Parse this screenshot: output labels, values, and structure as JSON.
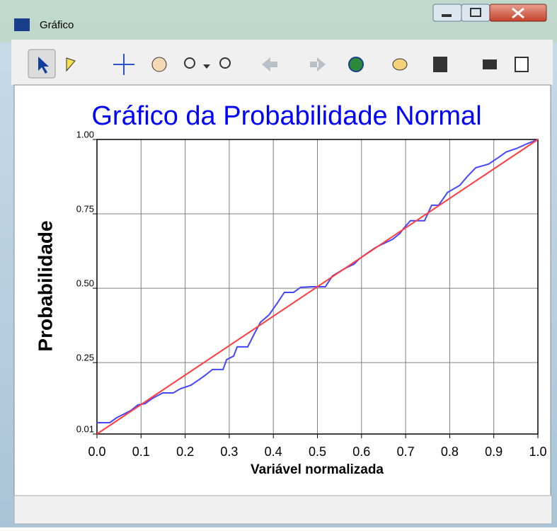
{
  "window": {
    "title": "Gráfico"
  },
  "chart_data": {
    "type": "line",
    "title": "Gráfico da Probabilidade Normal",
    "xlabel": "Variável normalizada",
    "ylabel": "Probabilidade",
    "xlim": [
      0,
      1
    ],
    "ylim": [
      0.01,
      1
    ],
    "xticks": [
      {
        "value": 0,
        "label": "0.0"
      },
      0.1,
      0.2,
      0.3,
      0.4,
      0.5,
      0.6,
      0.7,
      0.8,
      0.9,
      {
        "value": 1,
        "label": "1.0"
      }
    ],
    "yticks": [
      0.01,
      0.25,
      {
        "value": 0.5,
        "label": "0.50"
      },
      0.75,
      {
        "value": 1,
        "label": "1.00"
      }
    ],
    "grid": true,
    "series": [
      {
        "color": "#4646ff",
        "x": [
          0,
          0.029,
          0.045,
          0.061,
          0.077,
          0.093,
          0.109,
          0.125,
          0.149,
          0.173,
          0.189,
          0.213,
          0.23,
          0.246,
          0.262,
          0.286,
          0.294,
          0.31,
          0.318,
          0.342,
          0.358,
          0.371,
          0.39,
          0.409,
          0.425,
          0.446,
          0.462,
          0.486,
          0.518,
          0.534,
          0.547,
          0.567,
          0.583,
          0.596,
          0.615,
          0.631,
          0.647,
          0.671,
          0.687,
          0.695,
          0.711,
          0.743,
          0.759,
          0.775,
          0.795,
          0.823,
          0.839,
          0.859,
          0.888,
          0.912,
          0.928,
          0.952,
          0.976,
          1
        ],
        "values": [
          0.048,
          0.048,
          0.065,
          0.077,
          0.089,
          0.108,
          0.112,
          0.129,
          0.148,
          0.148,
          0.162,
          0.174,
          0.191,
          0.208,
          0.227,
          0.227,
          0.26,
          0.272,
          0.303,
          0.303,
          0.35,
          0.386,
          0.41,
          0.45,
          0.486,
          0.486,
          0.503,
          0.505,
          0.505,
          0.541,
          0.553,
          0.57,
          0.581,
          0.6,
          0.62,
          0.636,
          0.648,
          0.665,
          0.684,
          0.7,
          0.727,
          0.727,
          0.779,
          0.779,
          0.822,
          0.846,
          0.874,
          0.905,
          0.917,
          0.941,
          0.958,
          0.97,
          0.986,
          1
        ]
      },
      {
        "color": "#ff3c3c",
        "x": [
          0,
          1
        ],
        "values": [
          0.01,
          1
        ]
      }
    ]
  }
}
